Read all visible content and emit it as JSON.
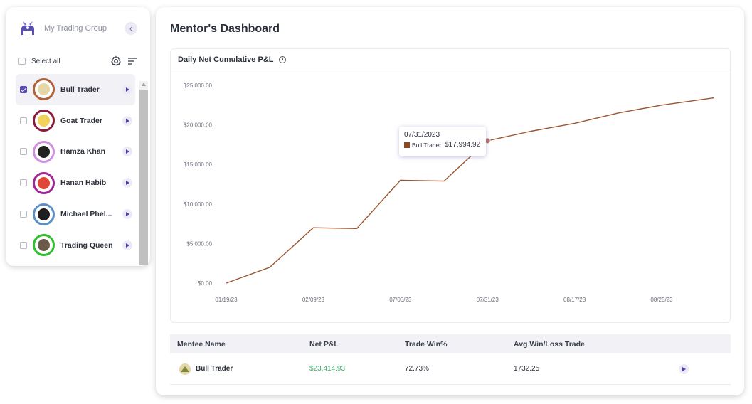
{
  "sidebar": {
    "group_name": "My Trading Group",
    "collapse_icon": "chevron-left-icon",
    "select_all_label": "Select all",
    "members": [
      {
        "name": "Bull Trader",
        "checked": true,
        "ring_color": "#b0613a",
        "face_color": "#e6d7a8",
        "active": true
      },
      {
        "name": "Goat Trader",
        "checked": false,
        "ring_color": "#8a1b3a",
        "face_color": "#f2d25a",
        "active": false
      },
      {
        "name": "Hamza Khan",
        "checked": false,
        "ring_color": "#d08ee0",
        "face_color": "#222222",
        "active": false
      },
      {
        "name": "Hanan Habib",
        "checked": false,
        "ring_color": "#a0269a",
        "face_color": "#e0463a",
        "active": false
      },
      {
        "name": "Michael Phel...",
        "checked": false,
        "ring_color": "#5a90c8",
        "face_color": "#1f1f1f",
        "active": false
      },
      {
        "name": "Trading Queen",
        "checked": false,
        "ring_color": "#2ec02e",
        "face_color": "#6b5b4a",
        "active": false
      }
    ]
  },
  "main": {
    "title": "Mentor's Dashboard",
    "chart_card": {
      "title": "Daily Net Cumulative P&L",
      "info_icon": "info-icon"
    },
    "tooltip": {
      "date": "07/31/2023",
      "series": "Bull Trader",
      "value": "$17,994.92"
    },
    "table": {
      "headers": [
        "Mentee Name",
        "Net P&L",
        "Trade Win%",
        "Avg Win/Loss Trade"
      ],
      "rows": [
        {
          "name": "Bull Trader",
          "net_pnl": "$23,414.93",
          "win_pct": "72.73%",
          "avg_win_loss": "1732.25"
        }
      ]
    }
  },
  "chart_data": {
    "type": "line",
    "title": "Daily Net Cumulative P&L",
    "xlabel": "",
    "ylabel": "",
    "x_tick_labels": [
      "01/19/23",
      "02/09/23",
      "07/06/23",
      "07/31/23",
      "08/17/23",
      "08/25/23"
    ],
    "y_tick_labels": [
      "$0.00",
      "$5,000.00",
      "$10,000.00",
      "$15,000.00",
      "$20,000.00",
      "$25,000.00"
    ],
    "ylim": [
      0,
      25000
    ],
    "grid": false,
    "series": [
      {
        "name": "Bull Trader",
        "color": "#9b5530",
        "x": [
          "01/19/23",
          "02/02/23",
          "02/09/23",
          "02/23/23",
          "07/06/23",
          "07/20/23",
          "07/31/23",
          "08/10/23",
          "08/17/23",
          "08/21/23",
          "08/25/23",
          "08/31/23"
        ],
        "y": [
          0,
          2000,
          7000,
          6900,
          13000,
          12900,
          17994.92,
          19200,
          20200,
          21500,
          22500,
          23414.93
        ]
      }
    ],
    "highlight_index": 6
  }
}
